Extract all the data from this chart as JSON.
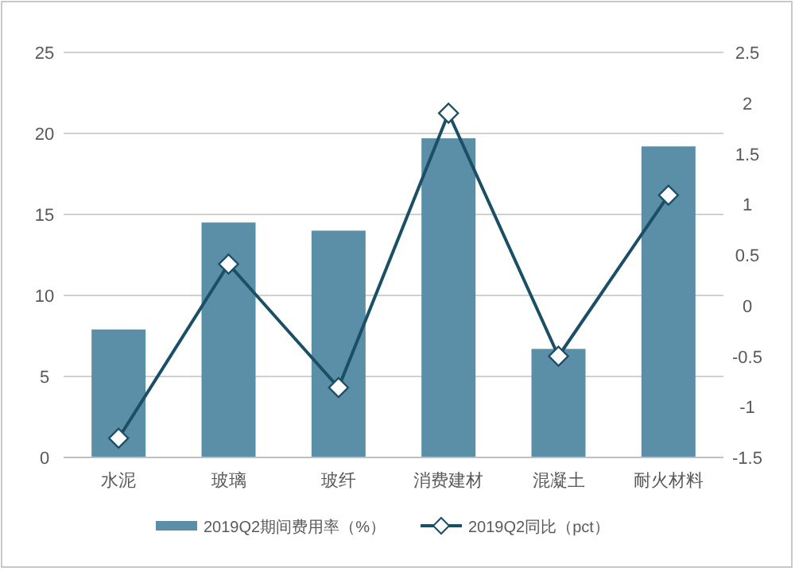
{
  "chart_data": {
    "type": "bar",
    "categories": [
      "水泥",
      "玻璃",
      "玻纤",
      "消费建材",
      "混凝土",
      "耐火材料"
    ],
    "series": [
      {
        "name": "2019Q2期间费用率（%）",
        "color": "#5b8fa8",
        "values": [
          7.9,
          14.5,
          14.0,
          19.7,
          6.7,
          19.2
        ]
      },
      {
        "name": "2019Q2同比（pct）",
        "type": "line",
        "axis": "y2",
        "color": "#1a4f66",
        "marker": "diamond",
        "values": [
          -1.31,
          0.41,
          -0.81,
          1.9,
          -0.5,
          1.09
        ]
      }
    ],
    "ylim": [
      0,
      25
    ],
    "yticks": [
      0,
      5,
      10,
      15,
      20,
      25
    ],
    "y2lim": [
      -1.5,
      2.5
    ],
    "y2ticks": [
      -1.5,
      -1,
      -0.5,
      0,
      0.5,
      1,
      1.5,
      2,
      2.5
    ],
    "grid": "y",
    "legend": "bottom"
  }
}
